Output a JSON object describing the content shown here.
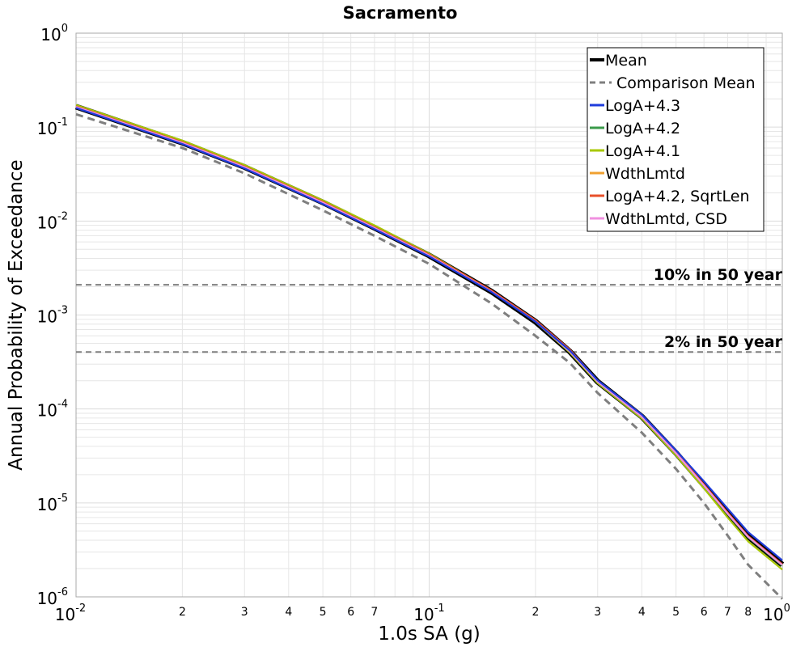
{
  "chart_data": {
    "type": "line",
    "title": "Sacramento",
    "xlabel": "1.0s SA (g)",
    "ylabel": "Annual Probability of Exceedance",
    "xscale": "log",
    "yscale": "log",
    "xlim": [
      0.01,
      1
    ],
    "ylim": [
      1e-06,
      1
    ],
    "grid": true,
    "legend_position": "top-right",
    "x_ticks": [
      {
        "base": "10",
        "exp": "-2"
      },
      {
        "base": "10",
        "exp": "-1"
      },
      {
        "base": "10",
        "exp": "0"
      }
    ],
    "x_minor_ticks": [
      "2",
      "3",
      "4",
      "5",
      "6",
      "7",
      "2",
      "3",
      "4",
      "5",
      "6",
      "7",
      "8"
    ],
    "y_ticks": [
      {
        "base": "10",
        "exp": "0"
      },
      {
        "base": "10",
        "exp": "-1"
      },
      {
        "base": "10",
        "exp": "-2"
      },
      {
        "base": "10",
        "exp": "-3"
      },
      {
        "base": "10",
        "exp": "-4"
      },
      {
        "base": "10",
        "exp": "-5"
      },
      {
        "base": "10",
        "exp": "-6"
      }
    ],
    "reference_lines": [
      {
        "label": "10% in 50 year",
        "y": 0.0021
      },
      {
        "label": "2% in 50 year",
        "y": 0.000404
      }
    ],
    "x": [
      0.01,
      0.02,
      0.03,
      0.05,
      0.07,
      0.1,
      0.15,
      0.2,
      0.25,
      0.3,
      0.4,
      0.5,
      0.6,
      0.7,
      0.8,
      1.0
    ],
    "series": [
      {
        "name": "Mean",
        "color": "#000000",
        "style": "solid",
        "values": [
          0.165,
          0.0683,
          0.0376,
          0.0158,
          0.00849,
          0.0043,
          0.00178,
          0.00085,
          0.00041,
          0.000195,
          8.3e-05,
          3.4e-05,
          1.54e-05,
          7.8e-06,
          4.4e-06,
          2.2e-06
        ]
      },
      {
        "name": "Comparison Mean",
        "color": "#7f7f7f",
        "style": "dashed",
        "values": [
          0.137,
          0.06,
          0.0322,
          0.013,
          0.00697,
          0.0035,
          0.00133,
          0.0006,
          0.00031,
          0.000148,
          5.6e-05,
          2.3e-05,
          1e-05,
          4.5e-06,
          2.2e-06,
          9.5e-07
        ]
      },
      {
        "name": "LogA+4.3",
        "color": "#1f3cdc",
        "style": "solid",
        "values": [
          0.16,
          0.0662,
          0.0363,
          0.0152,
          0.00821,
          0.0042,
          0.00176,
          0.00085,
          0.00042,
          0.000202,
          8.7e-05,
          3.62e-05,
          1.7e-05,
          8.7e-06,
          4.9e-06,
          2.45e-06
        ]
      },
      {
        "name": "LogA+4.2",
        "color": "#3a9a4a",
        "style": "solid",
        "values": [
          0.166,
          0.069,
          0.038,
          0.016,
          0.0086,
          0.0044,
          0.0018,
          0.00085,
          0.00041,
          0.000194,
          8.2e-05,
          3.36e-05,
          1.52e-05,
          7.6e-06,
          4.3e-06,
          2.15e-06
        ]
      },
      {
        "name": "LogA+4.1",
        "color": "#a8c800",
        "style": "solid",
        "values": [
          0.172,
          0.072,
          0.0395,
          0.0166,
          0.009,
          0.0045,
          0.00181,
          0.00085,
          0.0004,
          0.000188,
          7.9e-05,
          3.2e-05,
          1.43e-05,
          7e-06,
          3.9e-06,
          1.95e-06
        ]
      },
      {
        "name": "WdthLmtd",
        "color": "#f0a030",
        "style": "solid",
        "values": [
          0.165,
          0.0686,
          0.0378,
          0.0159,
          0.00852,
          0.0043,
          0.0018,
          0.00086,
          0.00042,
          0.000197,
          8.3e-05,
          3.4e-05,
          1.55e-05,
          7.8e-06,
          4.4e-06,
          2.2e-06
        ]
      },
      {
        "name": "LogA+4.2, SqrtLen",
        "color": "#e8502a",
        "style": "solid",
        "values": [
          0.166,
          0.069,
          0.038,
          0.016,
          0.0086,
          0.0044,
          0.00183,
          0.00088,
          0.00043,
          0.0002,
          8.4e-05,
          3.45e-05,
          1.57e-05,
          7.9e-06,
          4.45e-06,
          2.22e-06
        ]
      },
      {
        "name": "WdthLmtd, CSD",
        "color": "#f090e0",
        "style": "solid",
        "values": [
          0.164,
          0.068,
          0.0374,
          0.0157,
          0.00845,
          0.0043,
          0.00178,
          0.00085,
          0.00041,
          0.000195,
          8.25e-05,
          3.38e-05,
          1.53e-05,
          7.7e-06,
          4.36e-06,
          2.18e-06
        ]
      }
    ]
  }
}
